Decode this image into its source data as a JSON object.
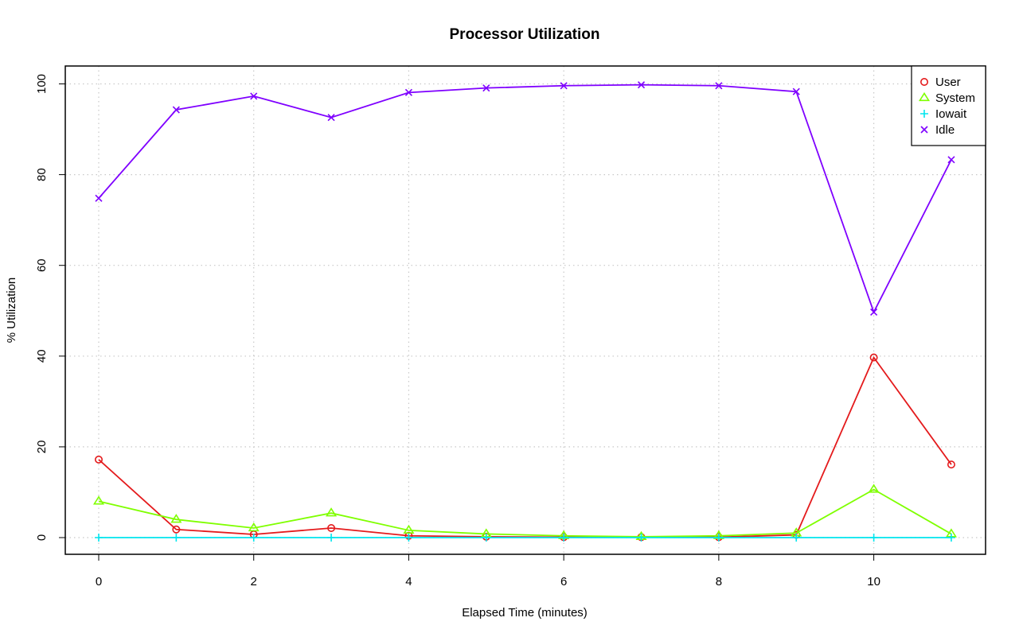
{
  "chart_data": {
    "type": "line",
    "title": "Processor Utilization",
    "xlabel": "Elapsed Time (minutes)",
    "ylabel": "% Utilization",
    "xlim": [
      0,
      11
    ],
    "ylim": [
      0,
      100
    ],
    "x_ticks": [
      0,
      2,
      4,
      6,
      8,
      10
    ],
    "y_ticks": [
      0,
      20,
      40,
      60,
      80,
      100
    ],
    "grid": true,
    "legend_position": "top-right",
    "x": [
      0,
      1,
      2,
      3,
      4,
      5,
      6,
      7,
      8,
      9,
      10,
      11
    ],
    "series": [
      {
        "name": "User",
        "color": "#e41a1c",
        "marker": "circle",
        "values": [
          17.2,
          1.8,
          0.7,
          2.1,
          0.4,
          0.2,
          0.1,
          0.1,
          0.1,
          0.6,
          39.7,
          16.1
        ]
      },
      {
        "name": "System",
        "color": "#7fff00",
        "marker": "triangle",
        "values": [
          8.0,
          4.0,
          2.1,
          5.4,
          1.6,
          0.8,
          0.4,
          0.2,
          0.4,
          1.0,
          10.6,
          0.8
        ]
      },
      {
        "name": "Iowait",
        "color": "#00e5ee",
        "marker": "plus",
        "values": [
          0,
          0,
          0,
          0,
          0,
          0,
          0,
          0,
          0,
          0,
          0,
          0
        ]
      },
      {
        "name": "Idle",
        "color": "#7f00ff",
        "marker": "cross",
        "values": [
          74.8,
          94.3,
          97.3,
          92.6,
          98.1,
          99.1,
          99.6,
          99.8,
          99.6,
          98.3,
          49.7,
          83.3
        ]
      }
    ]
  }
}
